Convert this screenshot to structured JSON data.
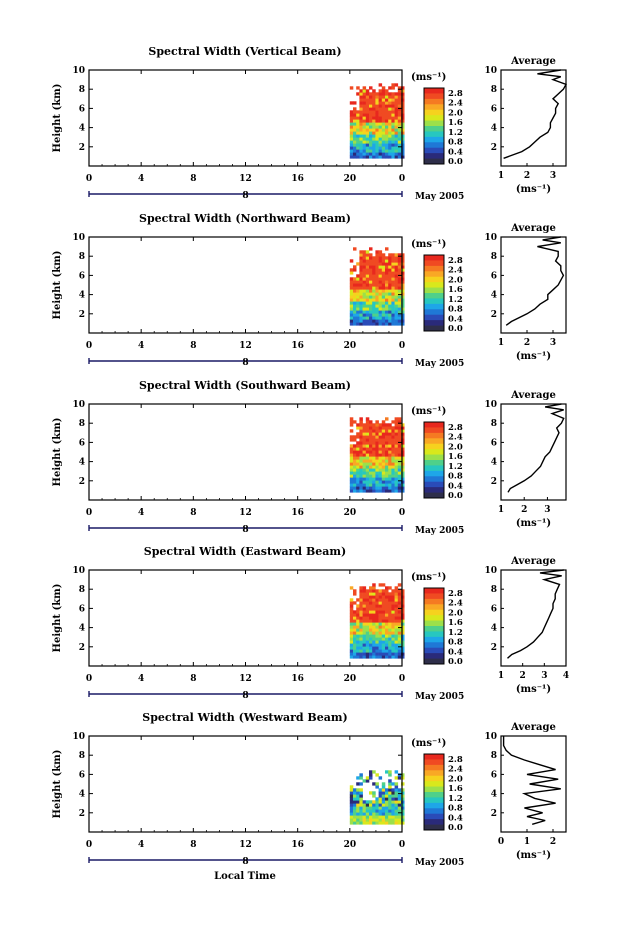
{
  "page": {
    "x_axis_title": "Local Time",
    "date_label": "May 2005"
  },
  "shared": {
    "y_axis_label": "Height (km)",
    "x_ticks": [
      "0",
      "4",
      "8",
      "12",
      "16",
      "20",
      "0"
    ],
    "y_ticks": [
      "2",
      "4",
      "6",
      "8",
      "10"
    ],
    "day_marker": "8",
    "unit_label": "(ms⁻¹)",
    "colorbar_labels": [
      "2.8",
      "2.4",
      "2.0",
      "1.6",
      "1.2",
      "0.8",
      "0.4",
      "0.0"
    ],
    "colorbar_colors": [
      "#e8281e",
      "#f04a22",
      "#f57a22",
      "#f9a825",
      "#f6d21e",
      "#d9e81c",
      "#9ce04a",
      "#4fd08a",
      "#27c7c0",
      "#1ea6e8",
      "#1f78d6",
      "#2a4bb8",
      "#2a2a7a",
      "#2e2e4a"
    ],
    "profile_title": "Average",
    "profile_xlabel": "(ms⁻¹)"
  },
  "chart_data": [
    {
      "type": "heatmap",
      "title": "Spectral Width (Vertical Beam)",
      "xlabel": "Local Time",
      "ylabel": "Height (km)",
      "xlim": [
        0,
        24
      ],
      "ylim": [
        0,
        10
      ],
      "data_extent": {
        "time": [
          20,
          24
        ],
        "height": [
          0.8,
          8.5
        ]
      },
      "value_range": [
        0.0,
        2.8
      ],
      "profile": {
        "title": "Average",
        "xlabel": "(ms⁻¹)",
        "xticks": [
          "1",
          "2",
          "3"
        ],
        "xlim": [
          1,
          3.5
        ],
        "ylim": [
          0,
          10
        ],
        "height": [
          0.8,
          1.0,
          1.5,
          2.0,
          2.5,
          3.0,
          3.5,
          4.0,
          4.5,
          5.0,
          5.5,
          6.0,
          6.5,
          7.0,
          7.5,
          8.0,
          8.5,
          9.0,
          9.3,
          9.6,
          10.0
        ],
        "width": [
          1.1,
          1.3,
          1.8,
          2.1,
          2.3,
          2.5,
          2.8,
          2.9,
          2.9,
          3.0,
          3.1,
          3.1,
          3.2,
          3.0,
          3.2,
          3.4,
          3.5,
          3.0,
          3.3,
          2.4,
          3.3
        ]
      }
    },
    {
      "type": "heatmap",
      "title": "Spectral Width (Northward Beam)",
      "xlabel": "Local Time",
      "ylabel": "Height (km)",
      "xlim": [
        0,
        24
      ],
      "ylim": [
        0,
        10
      ],
      "data_extent": {
        "time": [
          20,
          24
        ],
        "height": [
          0.8,
          8.8
        ]
      },
      "value_range": [
        0.0,
        2.8
      ],
      "profile": {
        "title": "Average",
        "xlabel": "(ms⁻¹)",
        "xticks": [
          "1",
          "2",
          "3"
        ],
        "xlim": [
          1,
          3.5
        ],
        "ylim": [
          0,
          10
        ],
        "height": [
          0.8,
          1.2,
          1.6,
          2.0,
          2.5,
          3.0,
          3.5,
          4.0,
          4.5,
          5.0,
          5.5,
          6.0,
          6.5,
          7.0,
          7.5,
          8.0,
          8.5,
          9.0,
          9.4,
          9.7,
          10.0
        ],
        "width": [
          1.2,
          1.4,
          1.7,
          2.0,
          2.3,
          2.5,
          2.8,
          2.8,
          3.0,
          3.2,
          3.3,
          3.4,
          3.3,
          3.3,
          3.1,
          3.2,
          3.2,
          2.4,
          3.3,
          2.6,
          3.3
        ]
      }
    },
    {
      "type": "heatmap",
      "title": "Spectral Width (Southward Beam)",
      "xlabel": "Local Time",
      "ylabel": "Height (km)",
      "xlim": [
        0,
        24
      ],
      "ylim": [
        0,
        10
      ],
      "data_extent": {
        "time": [
          20,
          24
        ],
        "height": [
          0.8,
          8.6
        ]
      },
      "value_range": [
        0.0,
        2.8
      ],
      "profile": {
        "title": "Average",
        "xlabel": "(ms⁻¹)",
        "xticks": [
          "1",
          "2",
          "3"
        ],
        "xlim": [
          1,
          3.8
        ],
        "ylim": [
          0,
          10
        ],
        "height": [
          0.8,
          1.2,
          1.6,
          2.0,
          2.5,
          3.0,
          3.5,
          4.0,
          4.5,
          5.0,
          5.5,
          6.0,
          6.5,
          7.0,
          7.5,
          8.0,
          8.5,
          9.0,
          9.4,
          9.7,
          10.0
        ],
        "width": [
          1.3,
          1.4,
          1.7,
          2.0,
          2.3,
          2.5,
          2.7,
          2.8,
          2.9,
          3.1,
          3.2,
          3.3,
          3.4,
          3.5,
          3.4,
          3.6,
          3.7,
          3.2,
          3.7,
          2.9,
          3.6
        ]
      }
    },
    {
      "type": "heatmap",
      "title": "Spectral Width (Eastward Beam)",
      "xlabel": "Local Time",
      "ylabel": "Height (km)",
      "xlim": [
        0,
        24
      ],
      "ylim": [
        0,
        10
      ],
      "data_extent": {
        "time": [
          20,
          24
        ],
        "height": [
          0.8,
          8.5
        ]
      },
      "value_range": [
        0.0,
        2.8
      ],
      "profile": {
        "title": "Average",
        "xlabel": "(ms⁻¹)",
        "xticks": [
          "1",
          "2",
          "3",
          "4"
        ],
        "xlim": [
          1,
          4
        ],
        "ylim": [
          0,
          10
        ],
        "height": [
          0.8,
          1.2,
          1.6,
          2.0,
          2.5,
          3.0,
          3.5,
          4.0,
          4.5,
          5.0,
          5.5,
          6.0,
          6.5,
          7.0,
          7.5,
          8.0,
          8.5,
          9.0,
          9.4,
          9.7,
          10.0
        ],
        "width": [
          1.3,
          1.5,
          1.9,
          2.2,
          2.5,
          2.7,
          2.9,
          3.0,
          3.1,
          3.2,
          3.3,
          3.4,
          3.4,
          3.5,
          3.5,
          3.6,
          3.7,
          3.0,
          3.8,
          2.8,
          3.9
        ]
      }
    },
    {
      "type": "heatmap",
      "title": "Spectral Width (Westward Beam)",
      "xlabel": "Local Time",
      "ylabel": "Height (km)",
      "xlim": [
        0,
        24
      ],
      "ylim": [
        0,
        10
      ],
      "data_extent": {
        "time": [
          20,
          24
        ],
        "height": [
          0.8,
          6.5
        ]
      },
      "value_range": [
        0.0,
        2.8
      ],
      "profile": {
        "title": "Average",
        "xlabel": "(ms⁻¹)",
        "xticks": [
          "0",
          "1",
          "2"
        ],
        "xlim": [
          0,
          2.5
        ],
        "ylim": [
          0,
          10
        ],
        "height": [
          0.8,
          1.2,
          1.6,
          2.0,
          2.5,
          3.0,
          3.5,
          4.0,
          4.5,
          5.0,
          5.5,
          6.0,
          6.5,
          7.0,
          7.5,
          8.0,
          8.5,
          9.0,
          9.5,
          10.0
        ],
        "width": [
          1.2,
          1.7,
          1.0,
          1.6,
          0.9,
          2.1,
          1.3,
          0.9,
          2.3,
          1.1,
          2.2,
          1.0,
          2.1,
          1.5,
          0.9,
          0.4,
          0.2,
          0.1,
          0.1,
          0.1
        ]
      }
    }
  ]
}
